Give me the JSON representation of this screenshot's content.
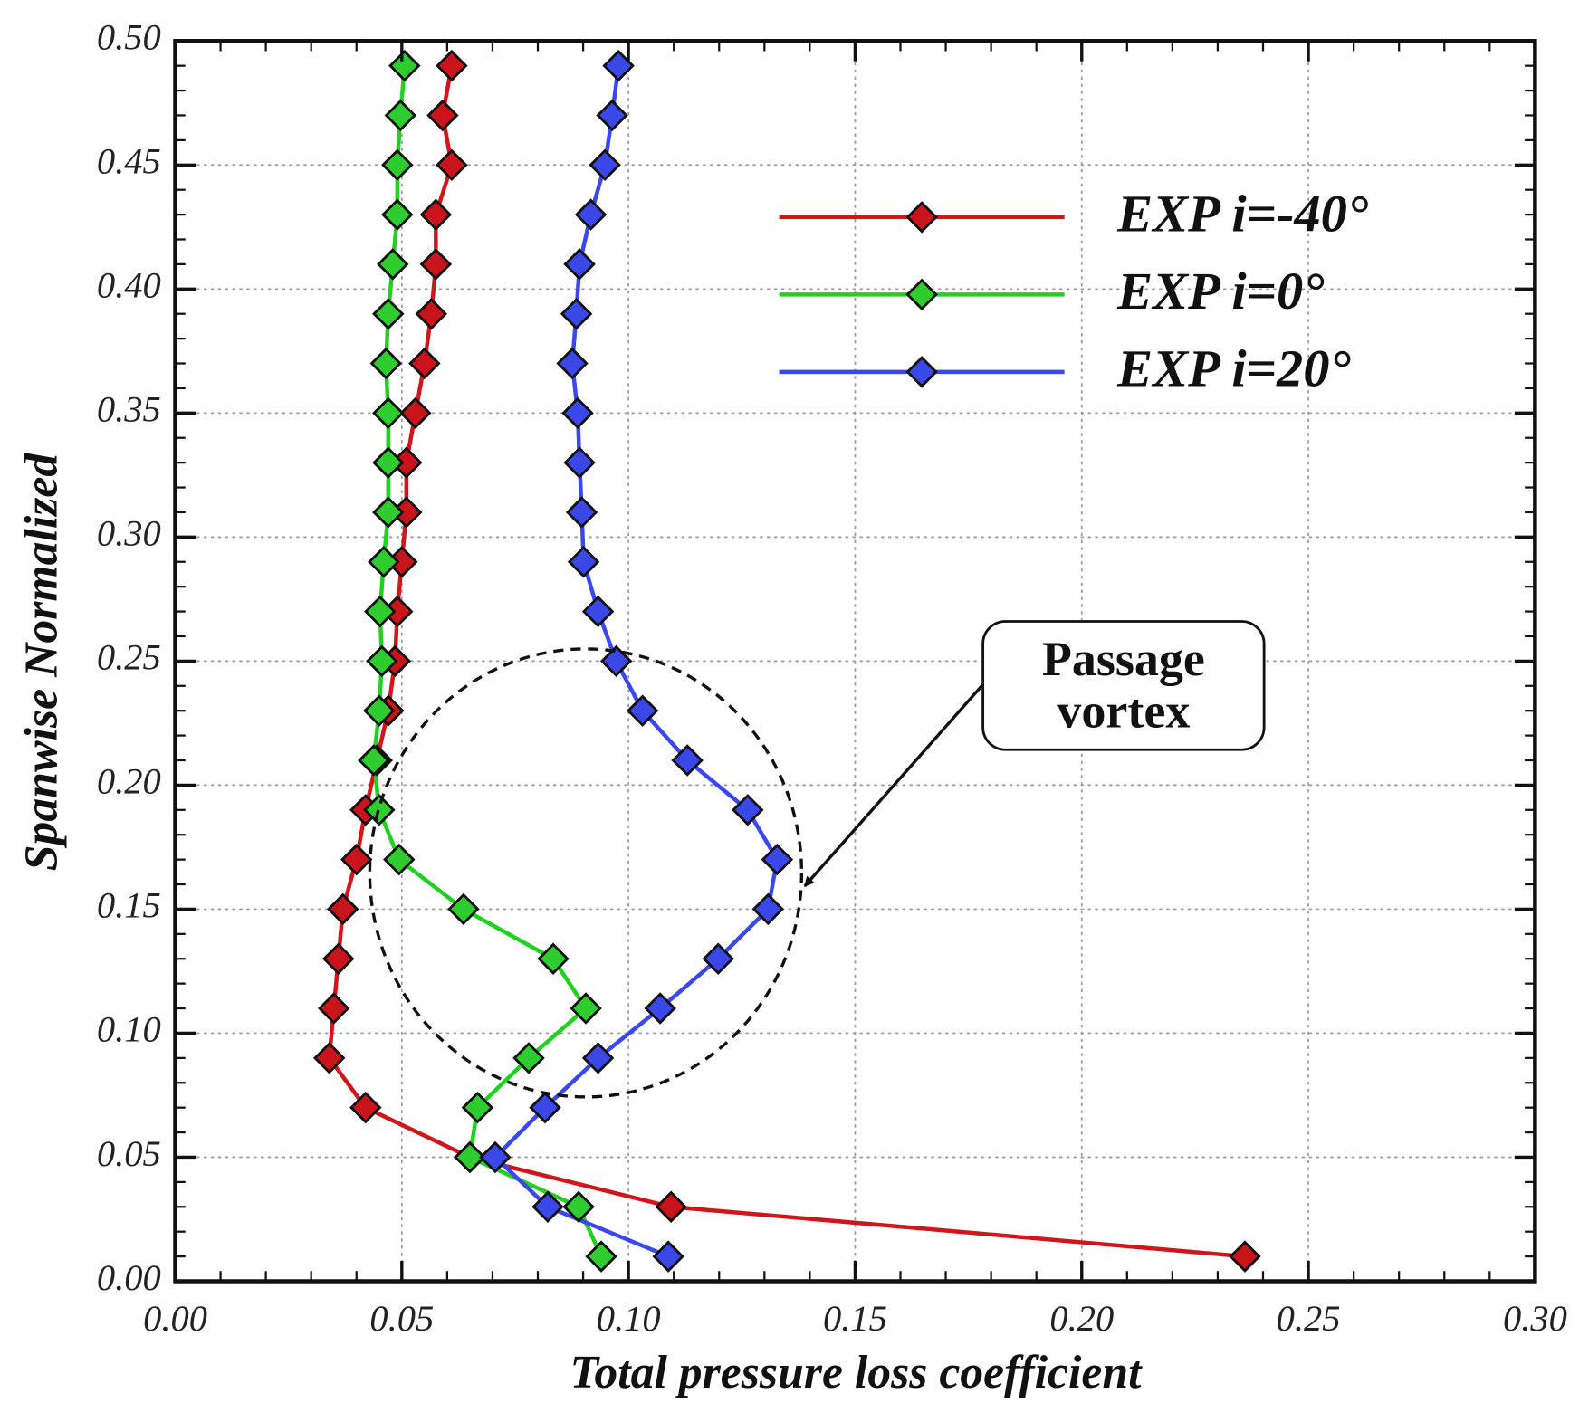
{
  "chart_data": {
    "type": "line",
    "x_label": "Total pressure loss coefficient",
    "y_label": "Spanwise Normalized",
    "annotation": [
      "Passage",
      "vortex"
    ],
    "xlim": [
      0,
      0.3
    ],
    "ylim": [
      0,
      0.5
    ],
    "xticks": [
      {
        "value": 0,
        "label": "0.00"
      },
      {
        "value": 0.05,
        "label": "0.05"
      },
      {
        "value": 0.1,
        "label": "0.10"
      },
      {
        "value": 0.15,
        "label": "0.15"
      },
      {
        "value": 0.2,
        "label": "0.20"
      },
      {
        "value": 0.25,
        "label": "0.25"
      },
      {
        "value": 0.3,
        "label": "0.30"
      }
    ],
    "yticks": [
      {
        "value": 0,
        "label": "0.00"
      },
      {
        "value": 0.05,
        "label": "0.05"
      },
      {
        "value": 0.1,
        "label": "0.10"
      },
      {
        "value": 0.15,
        "label": "0.15"
      },
      {
        "value": 0.2,
        "label": "0.20"
      },
      {
        "value": 0.25,
        "label": "0.25"
      },
      {
        "value": 0.3,
        "label": "0.30"
      },
      {
        "value": 0.35,
        "label": "0.35"
      },
      {
        "value": 0.4,
        "label": "0.40"
      },
      {
        "value": 0.45,
        "label": "0.45"
      },
      {
        "value": 0.5,
        "label": "0.50"
      }
    ],
    "grid": true,
    "legend": "upper right",
    "y": [
      0.01,
      0.03,
      0.05,
      0.07,
      0.09,
      0.11,
      0.13,
      0.15,
      0.17,
      0.19,
      0.21,
      0.23,
      0.25,
      0.27,
      0.29,
      0.31,
      0.33,
      0.35,
      0.37,
      0.39,
      0.41,
      0.43,
      0.45,
      0.47,
      0.49
    ],
    "series": [
      {
        "name": "EXP i=-40°",
        "color": "#d0161a",
        "marker_color": "#c8141a",
        "x": [
          0.236,
          0.1094,
          0.065,
          0.042,
          0.034,
          0.035,
          0.036,
          0.037,
          0.04,
          0.042,
          0.0445,
          0.047,
          0.0485,
          0.049,
          0.05,
          0.051,
          0.051,
          0.053,
          0.055,
          0.0565,
          0.0575,
          0.0575,
          0.061,
          0.059,
          0.061
        ]
      },
      {
        "name": "EXP i=0°",
        "color": "#22d022",
        "marker_color": "#2ecc2e",
        "x": [
          0.094,
          0.089,
          0.065,
          0.0667,
          0.078,
          0.0906,
          0.0834,
          0.0636,
          0.0494,
          0.045,
          0.0438,
          0.045,
          0.0456,
          0.0452,
          0.046,
          0.047,
          0.047,
          0.047,
          0.0465,
          0.047,
          0.048,
          0.049,
          0.049,
          0.0497,
          0.0506
        ]
      },
      {
        "name": "EXP i=20°",
        "color": "#3a48f0",
        "marker_color": "#3a48e8",
        "x": [
          0.1088,
          0.0822,
          0.0706,
          0.0816,
          0.0933,
          0.107,
          0.1198,
          0.1308,
          0.1328,
          0.1263,
          0.113,
          0.1031,
          0.0973,
          0.0933,
          0.0901,
          0.0897,
          0.0892,
          0.0888,
          0.0876,
          0.0885,
          0.0892,
          0.0917,
          0.0948,
          0.0964,
          0.0978
        ]
      }
    ]
  }
}
